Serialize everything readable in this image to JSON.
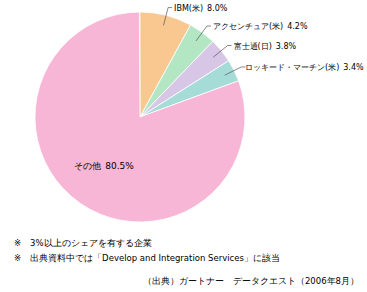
{
  "chart_data": {
    "type": "pie",
    "categories": [
      "IBM(米)",
      "アクセンチュア(米)",
      "富士通(日)",
      "ロッキード・マーチン(米)",
      "その他"
    ],
    "values": [
      8.0,
      4.2,
      3.8,
      3.4,
      80.5
    ],
    "value_labels": [
      "8.0%",
      "4.2%",
      "3.8%",
      "3.4%",
      "80.5%"
    ],
    "colors": [
      "#f9c890",
      "#b3e6c3",
      "#d7c6e6",
      "#a6dcd8",
      "#f7b6d6"
    ],
    "data_labels": true,
    "notes": [
      "※　3%以上のシェアを有する企業",
      "※　出典資料中では「Develop and Integration Services」に該当"
    ],
    "source": "（出典）ガートナー　データクエスト（2006年8月）"
  }
}
